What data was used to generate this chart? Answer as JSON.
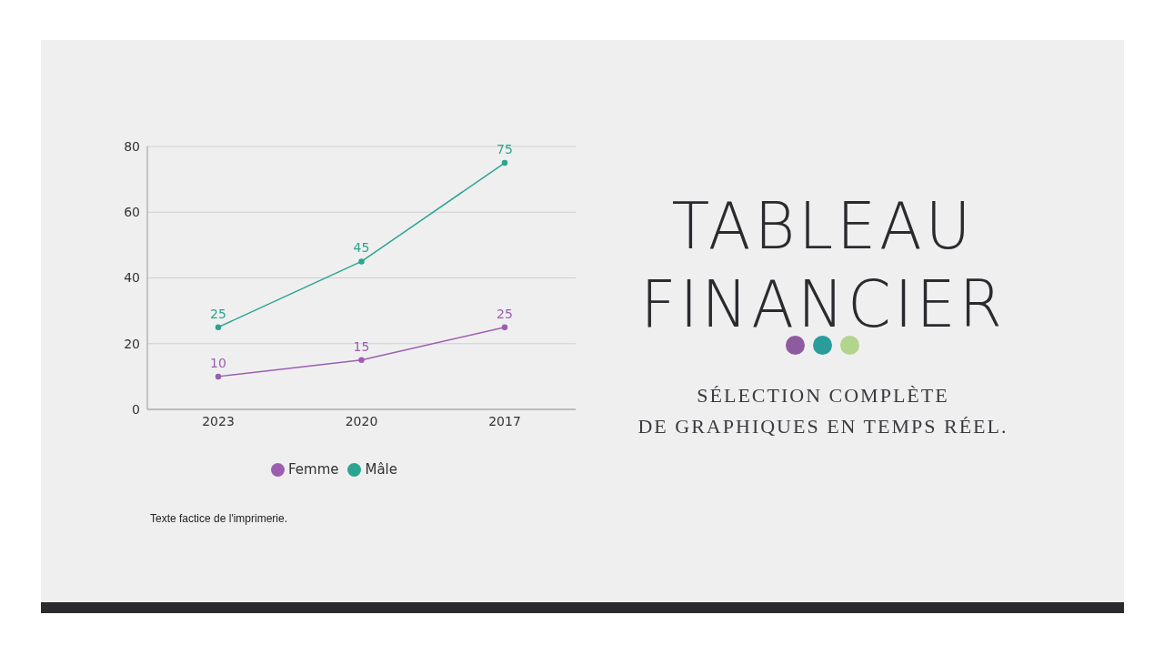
{
  "chart_data": {
    "type": "line",
    "title": "TABLEAU FINANCIER",
    "subtitle": "SÉLECTION COMPLÈTE\nDE GRAPHIQUES EN TEMPS RÉEL.",
    "categories": [
      "2023",
      "2020",
      "2017"
    ],
    "series": [
      {
        "name": "Femme",
        "color": "#9c5fb0",
        "values": [
          10,
          15,
          25
        ]
      },
      {
        "name": "Mâle",
        "color": "#2ba58f",
        "values": [
          25,
          45,
          75
        ]
      }
    ],
    "ylim": [
      0,
      80
    ],
    "yticks": [
      0,
      20,
      40,
      60,
      80
    ],
    "grid": "y",
    "legend": "bottom",
    "marker": "circle",
    "data_labels": true,
    "annotations": [
      "Texte factice de l'imprimerie."
    ]
  }
}
